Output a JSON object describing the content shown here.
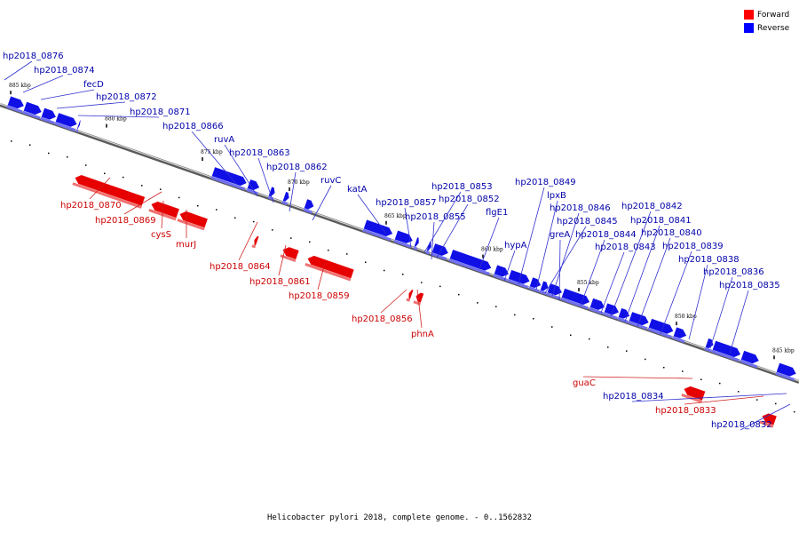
{
  "caption": "Helicobacter pylori 2018, complete genome. - 0..1562832",
  "legend": [
    {
      "label": "Forward",
      "color": "#ff0000"
    },
    {
      "label": "Reverse",
      "color": "#0000ff"
    }
  ],
  "colors": {
    "forward": "#e60000",
    "reverse": "#1010e6",
    "forward_label": "#cc0000",
    "reverse_label": "#0000aa",
    "backbone": "#808080"
  },
  "ticks": [
    "885 kbp",
    "880 kbp",
    "875 kbp",
    "870 kbp",
    "865 kbp",
    "860 kbp",
    "855 kbp",
    "850 kbp",
    "845 kbp"
  ],
  "genes": [
    {
      "name": "hp2018_0876",
      "strand": "reverse"
    },
    {
      "name": "hp2018_0874",
      "strand": "reverse"
    },
    {
      "name": "fecD",
      "strand": "reverse"
    },
    {
      "name": "hp2018_0872",
      "strand": "reverse"
    },
    {
      "name": "hp2018_0871",
      "strand": "reverse"
    },
    {
      "name": "hp2018_0866",
      "strand": "reverse"
    },
    {
      "name": "ruvA",
      "strand": "reverse"
    },
    {
      "name": "hp2018_0863",
      "strand": "reverse"
    },
    {
      "name": "hp2018_0862",
      "strand": "reverse"
    },
    {
      "name": "ruvC",
      "strand": "reverse"
    },
    {
      "name": "katA",
      "strand": "reverse"
    },
    {
      "name": "hp2018_0857",
      "strand": "reverse"
    },
    {
      "name": "hp2018_0853",
      "strand": "reverse"
    },
    {
      "name": "hp2018_0852",
      "strand": "reverse"
    },
    {
      "name": "hp2018_0855",
      "strand": "reverse"
    },
    {
      "name": "flgE1",
      "strand": "reverse"
    },
    {
      "name": "hp2018_0849",
      "strand": "reverse"
    },
    {
      "name": "lpxB",
      "strand": "reverse"
    },
    {
      "name": "hp2018_0846",
      "strand": "reverse"
    },
    {
      "name": "hp2018_0845",
      "strand": "reverse"
    },
    {
      "name": "hypA",
      "strand": "reverse"
    },
    {
      "name": "greA",
      "strand": "reverse"
    },
    {
      "name": "hp2018_0844",
      "strand": "reverse"
    },
    {
      "name": "hp2018_0843",
      "strand": "reverse"
    },
    {
      "name": "hp2018_0842",
      "strand": "reverse"
    },
    {
      "name": "hp2018_0841",
      "strand": "reverse"
    },
    {
      "name": "hp2018_0840",
      "strand": "reverse"
    },
    {
      "name": "hp2018_0839",
      "strand": "reverse"
    },
    {
      "name": "hp2018_0838",
      "strand": "reverse"
    },
    {
      "name": "hp2018_0836",
      "strand": "reverse"
    },
    {
      "name": "hp2018_0835",
      "strand": "reverse"
    },
    {
      "name": "hp2018_0834",
      "strand": "reverse"
    },
    {
      "name": "hp2018_0832",
      "strand": "reverse"
    },
    {
      "name": "hp2018_0870",
      "strand": "forward"
    },
    {
      "name": "hp2018_0869",
      "strand": "forward"
    },
    {
      "name": "cysS",
      "strand": "forward"
    },
    {
      "name": "murJ",
      "strand": "forward"
    },
    {
      "name": "hp2018_0864",
      "strand": "forward"
    },
    {
      "name": "hp2018_0861",
      "strand": "forward"
    },
    {
      "name": "hp2018_0859",
      "strand": "forward"
    },
    {
      "name": "hp2018_0856",
      "strand": "forward"
    },
    {
      "name": "phnA",
      "strand": "forward"
    },
    {
      "name": "guaC",
      "strand": "forward"
    },
    {
      "name": "hp2018_0833",
      "strand": "forward"
    }
  ]
}
